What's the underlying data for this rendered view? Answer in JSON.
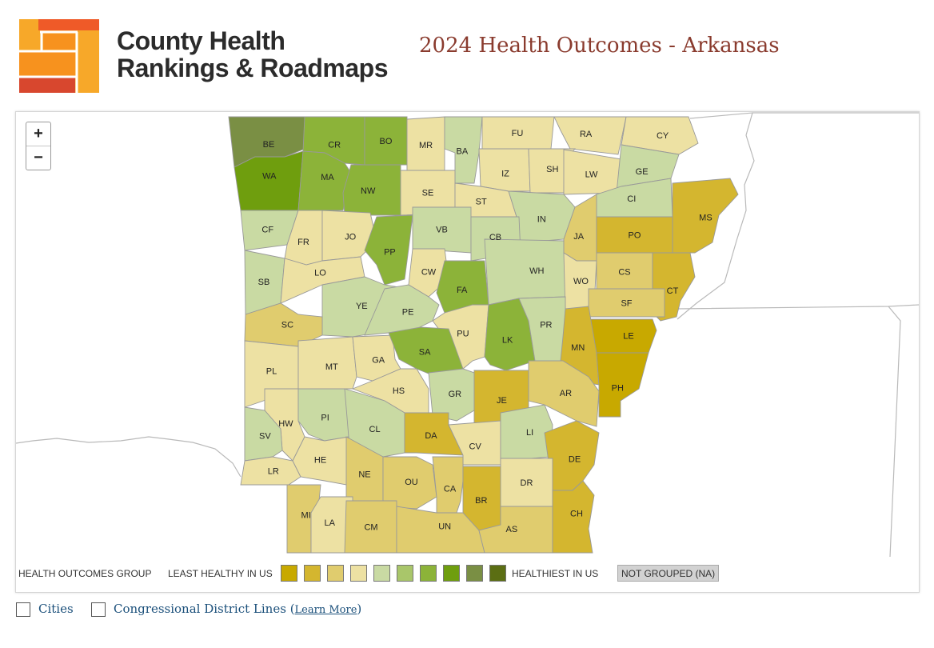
{
  "header": {
    "brand_line1": "County Health",
    "brand_line2": "Rankings & Roadmaps",
    "title": "2024 Health Outcomes - Arkansas"
  },
  "map": {
    "zoom_in": "+",
    "zoom_out": "−",
    "counties": [
      {
        "code": "BE",
        "group": 9
      },
      {
        "code": "CR",
        "group": 7
      },
      {
        "code": "BO",
        "group": 7
      },
      {
        "code": "MR",
        "group": 4
      },
      {
        "code": "BA",
        "group": 5
      },
      {
        "code": "FU",
        "group": 4
      },
      {
        "code": "RA",
        "group": 4
      },
      {
        "code": "CY",
        "group": 4
      },
      {
        "code": "WA",
        "group": 8
      },
      {
        "code": "MA",
        "group": 7
      },
      {
        "code": "NW",
        "group": 7
      },
      {
        "code": "SE",
        "group": 4
      },
      {
        "code": "IZ",
        "group": 4
      },
      {
        "code": "SH",
        "group": 4
      },
      {
        "code": "LW",
        "group": 4
      },
      {
        "code": "GE",
        "group": 5
      },
      {
        "code": "ST",
        "group": 4
      },
      {
        "code": "IN",
        "group": 5
      },
      {
        "code": "CI",
        "group": 5
      },
      {
        "code": "MS",
        "group": 2
      },
      {
        "code": "CF",
        "group": 5
      },
      {
        "code": "FR",
        "group": 4
      },
      {
        "code": "JO",
        "group": 4
      },
      {
        "code": "PP",
        "group": 7
      },
      {
        "code": "VB",
        "group": 5
      },
      {
        "code": "CB",
        "group": 5
      },
      {
        "code": "JA",
        "group": 3
      },
      {
        "code": "PO",
        "group": 2
      },
      {
        "code": "SB",
        "group": 5
      },
      {
        "code": "LO",
        "group": 4
      },
      {
        "code": "CW",
        "group": 4
      },
      {
        "code": "FA",
        "group": 7
      },
      {
        "code": "WH",
        "group": 5
      },
      {
        "code": "WO",
        "group": 4
      },
      {
        "code": "CS",
        "group": 3
      },
      {
        "code": "CT",
        "group": 2
      },
      {
        "code": "YE",
        "group": 5
      },
      {
        "code": "PE",
        "group": 5
      },
      {
        "code": "SF",
        "group": 3
      },
      {
        "code": "SC",
        "group": 3
      },
      {
        "code": "PU",
        "group": 4
      },
      {
        "code": "LK",
        "group": 7
      },
      {
        "code": "PR",
        "group": 5
      },
      {
        "code": "LE",
        "group": 1
      },
      {
        "code": "PL",
        "group": 4
      },
      {
        "code": "MT",
        "group": 4
      },
      {
        "code": "GA",
        "group": 4
      },
      {
        "code": "SA",
        "group": 7
      },
      {
        "code": "MN",
        "group": 2
      },
      {
        "code": "PH",
        "group": 1
      },
      {
        "code": "HS",
        "group": 4
      },
      {
        "code": "GR",
        "group": 5
      },
      {
        "code": "JE",
        "group": 2
      },
      {
        "code": "AR",
        "group": 3
      },
      {
        "code": "HW",
        "group": 4
      },
      {
        "code": "PI",
        "group": 5
      },
      {
        "code": "CL",
        "group": 5
      },
      {
        "code": "DA",
        "group": 2
      },
      {
        "code": "CV",
        "group": 4
      },
      {
        "code": "LI",
        "group": 5
      },
      {
        "code": "SV",
        "group": 5
      },
      {
        "code": "DE",
        "group": 2
      },
      {
        "code": "LR",
        "group": 4
      },
      {
        "code": "HE",
        "group": 4
      },
      {
        "code": "NE",
        "group": 3
      },
      {
        "code": "OU",
        "group": 3
      },
      {
        "code": "CA",
        "group": 3
      },
      {
        "code": "DR",
        "group": 4
      },
      {
        "code": "BR",
        "group": 2
      },
      {
        "code": "MI",
        "group": 3
      },
      {
        "code": "LA",
        "group": 4
      },
      {
        "code": "CM",
        "group": 3
      },
      {
        "code": "UN",
        "group": 3
      },
      {
        "code": "AS",
        "group": 3
      },
      {
        "code": "CH",
        "group": 2
      }
    ]
  },
  "legend": {
    "group_label": "HEALTH OUTCOMES GROUP",
    "least_label": "LEAST HEALTHY IN US",
    "healthiest_label": "HEALTHIEST IN US",
    "not_grouped_label": "NOT GROUPED (NA)",
    "colors": [
      "#c8a900",
      "#d4b62f",
      "#e0cc6e",
      "#ede1a3",
      "#c9daa3",
      "#a9c66a",
      "#8cb339",
      "#6f9e0e",
      "#7a8f44",
      "#5b6e13"
    ]
  },
  "options": {
    "cities_label": "Cities",
    "district_label": "Congressional District Lines",
    "learn_more": "Learn More"
  }
}
